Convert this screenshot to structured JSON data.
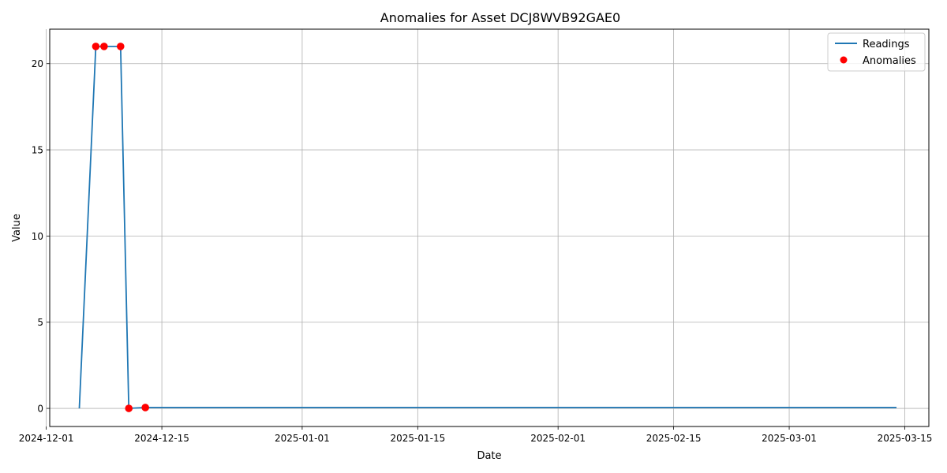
{
  "chart_data": {
    "type": "line",
    "title": "Anomalies for Asset DCJ8WVB92GAE0",
    "xlabel": "Date",
    "ylabel": "Value",
    "xlim": [
      "2024-12-01T10:00",
      "2025-03-17T22:00"
    ],
    "ylim": [
      -1.05,
      22
    ],
    "x_ticks": [
      "2024-12-01",
      "2024-12-15",
      "2025-01-01",
      "2025-01-15",
      "2025-02-01",
      "2025-02-15",
      "2025-03-01",
      "2025-03-15"
    ],
    "y_ticks": [
      0,
      5,
      10,
      15,
      20
    ],
    "grid": true,
    "legend_position": "top-right",
    "colors": {
      "readings": "#1f77b4",
      "anomalies": "#ff0000",
      "grid": "#b0b0b0"
    },
    "series": [
      {
        "name": "Readings",
        "kind": "line",
        "x": [
          "2024-12-05",
          "2024-12-07",
          "2024-12-08",
          "2024-12-10",
          "2024-12-11",
          "2024-12-13",
          "2025-03-14"
        ],
        "y": [
          0,
          21,
          21,
          21,
          0,
          0.05,
          0.05
        ]
      },
      {
        "name": "Anomalies",
        "kind": "scatter",
        "x": [
          "2024-12-07",
          "2024-12-08",
          "2024-12-10",
          "2024-12-11",
          "2024-12-13"
        ],
        "y": [
          21,
          21,
          21,
          0,
          0.05
        ]
      }
    ]
  }
}
